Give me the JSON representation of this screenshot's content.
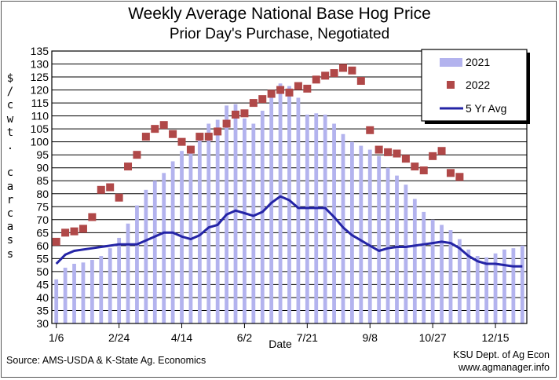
{
  "title": "Weekly Average National Base Hog Price",
  "subtitle": "Prior Day's Purchase, Negotiated",
  "ylabel": "$/cwt. carcass",
  "source": "Source: AMS-USDA & K-State Ag. Economics",
  "credit_line1": "KSU Dept. of Ag Econ",
  "credit_line2": "www.agmanager.info",
  "colors": {
    "bar_2021": "#b3b3ee",
    "marker_2022": "#b04848",
    "line_5yr": "#2424a6",
    "axis": "#000000",
    "grid": "#000000"
  },
  "chart_data": {
    "type": "bar",
    "title": "Weekly Average National Base Hog Price",
    "subtitle": "Prior Day's Purchase, Negotiated",
    "xlabel": "Date",
    "ylabel": "$/cwt. carcass",
    "ylim": [
      30,
      135
    ],
    "ytick_step": 5,
    "grid": true,
    "legend_position": "top-right",
    "weeks": 53,
    "xtick_labels": [
      {
        "label": "1/6",
        "week": 1
      },
      {
        "label": "2/24",
        "week": 8
      },
      {
        "label": "4/14",
        "week": 15
      },
      {
        "label": "6/2",
        "week": 22
      },
      {
        "label": "7/21",
        "week": 29
      },
      {
        "label": "9/8",
        "week": 36
      },
      {
        "label": "10/27",
        "week": 43
      },
      {
        "label": "12/15",
        "week": 50
      }
    ],
    "series": [
      {
        "name": "2021",
        "kind": "bar",
        "values": [
          47,
          51.5,
          53,
          53.5,
          54.5,
          56,
          59,
          63,
          68.5,
          75.5,
          81.5,
          85,
          88,
          92.5,
          96.5,
          98.5,
          101.5,
          107,
          108.5,
          114,
          114.5,
          109,
          107,
          112,
          117,
          122.5,
          121.5,
          117,
          110.5,
          111,
          110.5,
          107,
          103,
          100,
          98.5,
          97,
          94.5,
          90,
          87,
          83.5,
          78,
          73,
          70,
          68,
          66,
          62.5,
          58.5,
          56,
          55.5,
          57,
          58.5,
          59,
          60
        ]
      },
      {
        "name": "2022",
        "kind": "marker",
        "values": [
          61.5,
          65,
          65.5,
          66.5,
          71,
          81.5,
          82.5,
          78.5,
          90.5,
          95,
          102,
          105,
          106.5,
          103,
          100,
          97,
          102,
          102,
          104,
          107,
          110.5,
          111,
          115,
          116.5,
          118.5,
          120,
          119,
          121.5,
          120.5,
          124,
          125.5,
          126.5,
          128.5,
          127.5,
          123.5,
          104.5,
          97,
          96,
          95.5,
          93.5,
          90.5,
          89,
          94.5,
          96.5,
          88,
          86.5
        ]
      },
      {
        "name": "5 Yr Avg",
        "kind": "line",
        "values": [
          53,
          56.5,
          58,
          58.5,
          59,
          59.5,
          60,
          60.5,
          60.5,
          60.5,
          62,
          63.5,
          65,
          65,
          63.5,
          62.5,
          64,
          67,
          68,
          72,
          73.5,
          72.5,
          71.5,
          73,
          76.5,
          79,
          77.5,
          74.5,
          74.5,
          74.5,
          74.5,
          71,
          67,
          64,
          62,
          60,
          58,
          59,
          59.5,
          59.5,
          60,
          60.5,
          61,
          61.5,
          61,
          59,
          56,
          54,
          53,
          53,
          52.5,
          52,
          52
        ]
      }
    ]
  }
}
